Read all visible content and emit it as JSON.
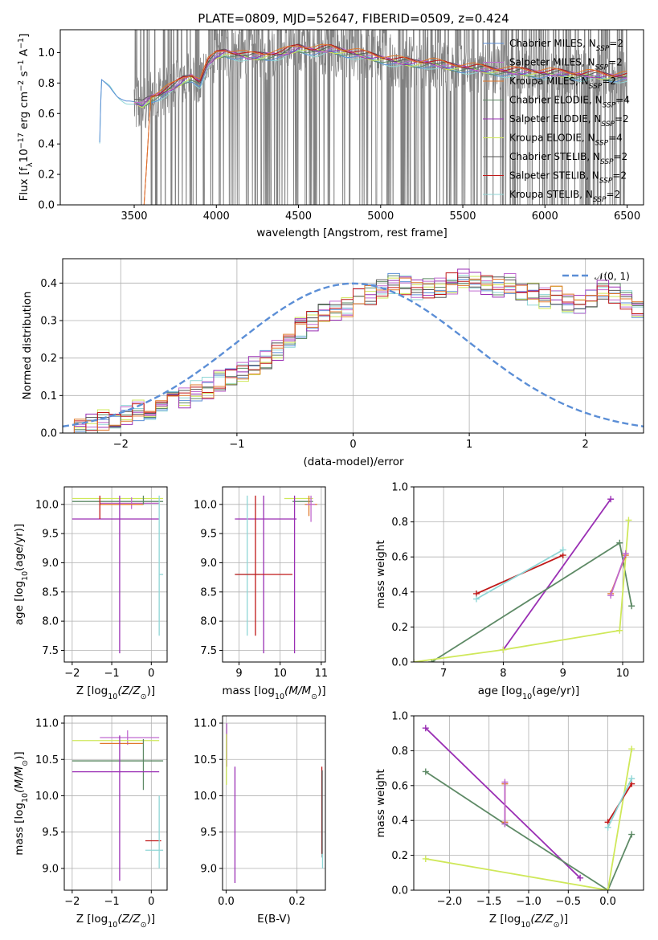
{
  "figure_title": "PLATE=0809, MJD=52647, FIBERID=0509, z=0.424",
  "colors": {
    "chabrier_miles": "#5b8ed6",
    "salpeter_miles": "#c06ad0",
    "kroupa_miles": "#e0782c",
    "chabrier_elodie": "#5e8a66",
    "salpeter_elodie": "#9a2fb4",
    "kroupa_elodie": "#cfe85a",
    "chabrier_stelib": "#555555",
    "salpeter_stelib": "#c01818",
    "kroupa_stelib": "#8fd6d6",
    "data": "#808080",
    "gauss": "#5b8ed6"
  },
  "legend_spectrum": [
    {
      "key": "chabrier_miles",
      "label": "Chabrier MILES, N",
      "sub": "SSP",
      "val": "=2"
    },
    {
      "key": "salpeter_miles",
      "label": "Salpeter MILES, N",
      "sub": "SSP",
      "val": "=2"
    },
    {
      "key": "kroupa_miles",
      "label": "Kroupa MILES, N",
      "sub": "SSP",
      "val": "=2"
    },
    {
      "key": "chabrier_elodie",
      "label": "Chabrier ELODIE, N",
      "sub": "SSP",
      "val": "=4"
    },
    {
      "key": "salpeter_elodie",
      "label": "Salpeter ELODIE, N",
      "sub": "SSP",
      "val": "=2"
    },
    {
      "key": "kroupa_elodie",
      "label": "Kroupa ELODIE, N",
      "sub": "SSP",
      "val": "=4"
    },
    {
      "key": "chabrier_stelib",
      "label": "Chabrier STELIB, N",
      "sub": "SSP",
      "val": "=2"
    },
    {
      "key": "salpeter_stelib",
      "label": "Salpeter STELIB, N",
      "sub": "SSP",
      "val": "=2"
    },
    {
      "key": "kroupa_stelib",
      "label": "Kroupa STELIB, N",
      "sub": "SSP",
      "val": "=2"
    }
  ],
  "chart_data": [
    {
      "id": "spectrum",
      "type": "line",
      "title": "PLATE=0809, MJD=52647, FIBERID=0509, z=0.424",
      "xlabel": "wavelength [Angstrom, rest frame]",
      "ylabel_parts": [
        "Flux [f",
        "λ",
        "10",
        "−17",
        " erg cm",
        "−2",
        " s",
        "−1",
        " A",
        "−1",
        "]"
      ],
      "xlim": [
        3050,
        6600
      ],
      "ylim": [
        0,
        1.15
      ],
      "xticks": [
        3500,
        4000,
        4500,
        5000,
        5500,
        6000,
        6500
      ],
      "yticks": [
        0.0,
        0.2,
        0.4,
        0.6,
        0.8,
        1.0
      ],
      "model_knots": {
        "x": [
          3280,
          3300,
          3350,
          3400,
          3450,
          3500,
          3550,
          3600,
          3650,
          3700,
          3750,
          3800,
          3850,
          3900,
          3950,
          4000,
          4050,
          4100,
          4200,
          4300,
          4400,
          4500,
          4600,
          4700,
          4800,
          4900,
          5000,
          5100,
          5200,
          5300,
          5400,
          5500,
          5600,
          5700,
          5800,
          5900,
          6000,
          6100,
          6200,
          6300,
          6400,
          6500
        ],
        "y": [
          0.0,
          0.83,
          0.8,
          0.74,
          0.7,
          0.68,
          0.66,
          0.7,
          0.72,
          0.75,
          0.78,
          0.82,
          0.84,
          0.8,
          0.93,
          0.98,
          1.0,
          0.99,
          0.97,
          0.98,
          0.99,
          1.03,
          1.01,
          1.02,
          1.0,
          0.98,
          0.96,
          0.94,
          0.93,
          0.93,
          0.91,
          0.9,
          0.89,
          0.88,
          0.87,
          0.87,
          0.86,
          0.86,
          0.85,
          0.85,
          0.84,
          0.84
        ]
      },
      "data_range": [
        3500,
        6500
      ],
      "legend_position": "upper right"
    },
    {
      "id": "residuals",
      "type": "step",
      "xlabel": "(data-model)/error",
      "ylabel": "Normed distribution",
      "xlim": [
        -2.5,
        2.5
      ],
      "ylim": [
        0,
        0.465
      ],
      "xticks": [
        -2,
        -1,
        0,
        1,
        2
      ],
      "yticks": [
        0.0,
        0.1,
        0.2,
        0.3,
        0.4
      ],
      "bin_width": 0.1,
      "bin_start": -2.5,
      "base_hist": [
        0.018,
        0.022,
        0.028,
        0.034,
        0.042,
        0.052,
        0.058,
        0.05,
        0.07,
        0.082,
        0.092,
        0.11,
        0.12,
        0.14,
        0.155,
        0.165,
        0.18,
        0.2,
        0.22,
        0.25,
        0.28,
        0.3,
        0.32,
        0.33,
        0.34,
        0.36,
        0.37,
        0.38,
        0.4,
        0.39,
        0.38,
        0.385,
        0.39,
        0.4,
        0.41,
        0.4,
        0.39,
        0.39,
        0.4,
        0.38,
        0.37,
        0.36,
        0.37,
        0.35,
        0.34,
        0.36,
        0.38,
        0.37,
        0.35,
        0.33,
        0.38,
        0.36,
        0.35,
        0.34,
        0.32,
        0.3,
        0.29,
        0.28,
        0.27,
        0.25,
        0.23,
        0.21,
        0.19,
        0.17,
        0.15,
        0.14,
        0.13,
        0.12,
        0.11,
        0.1,
        0.09,
        0.08,
        0.075,
        0.07,
        0.06,
        0.055,
        0.05,
        0.045,
        0.04,
        0.038,
        0.035,
        0.032,
        0.03,
        0.028,
        0.026,
        0.024,
        0.022,
        0.02,
        0.019,
        0.018,
        0.017,
        0.016,
        0.015,
        0.014,
        0.013,
        0.012,
        0.011,
        0.01,
        0.01,
        0.01
      ],
      "gaussian_label": "𝒩(0, 1)",
      "legend_position": "upper right"
    },
    {
      "id": "age_vs_Z",
      "type": "errorbar",
      "xlabel_parts": [
        "Z [log",
        "10",
        "(Z/Z",
        "⊙",
        ")]"
      ],
      "ylabel_parts": [
        "age  [log",
        "10",
        "(age/yr)]"
      ],
      "xlim": [
        -2.2,
        0.4
      ],
      "ylim": [
        7.3,
        10.3
      ],
      "xticks": [
        -2,
        -1,
        0
      ],
      "yticks": [
        7.5,
        8.0,
        8.5,
        9.0,
        9.5,
        10.0
      ],
      "bars": [
        {
          "c": "kroupa_elodie",
          "x": -0.9,
          "xerr": [
            1.1,
            1.2
          ],
          "y": 10.1,
          "yerr": [
            0.0,
            0.0
          ]
        },
        {
          "c": "chabrier_elodie",
          "x": -0.9,
          "xerr": [
            1.1,
            1.2
          ],
          "y": 10.05,
          "yerr": [
            0.0,
            0.0
          ]
        },
        {
          "c": "salpeter_miles",
          "x": -0.5,
          "xerr": [
            0.8,
            0.7
          ],
          "y": 10.02,
          "yerr": [
            0.1,
            0.1
          ]
        },
        {
          "c": "kroupa_miles",
          "x": -0.7,
          "xerr": [
            0.6,
            0.5
          ],
          "y": 10.0,
          "yerr": [
            0.0,
            0.0
          ]
        },
        {
          "c": "salpeter_elodie",
          "x": -0.8,
          "xerr": [
            1.2,
            1.0
          ],
          "y": 9.75,
          "yerr": [
            2.3,
            0.4
          ]
        },
        {
          "c": "kroupa_stelib",
          "x": 0.2,
          "xerr": [
            0.0,
            0.1
          ],
          "y": 8.8,
          "yerr": [
            1.05,
            1.35
          ]
        },
        {
          "c": "chabrier_elodie",
          "x": -0.2,
          "xerr": [
            0.0,
            0.0
          ],
          "y": 10.0,
          "yerr": [
            0.0,
            0.15
          ]
        },
        {
          "c": "salpeter_stelib",
          "x": -1.3,
          "xerr": [
            0.0,
            0.0
          ],
          "y": 10.0,
          "yerr": [
            0.25,
            0.15
          ]
        }
      ]
    },
    {
      "id": "age_vs_mass",
      "type": "errorbar",
      "xlabel_parts": [
        "mass [log",
        "10",
        "(M/M",
        "⊙",
        ")]"
      ],
      "xlim": [
        8.6,
        11.1
      ],
      "ylim": [
        7.3,
        10.3
      ],
      "xticks": [
        9,
        10,
        11
      ],
      "yticks": [
        7.5,
        8.0,
        8.5,
        9.0,
        9.5,
        10.0
      ],
      "bars": [
        {
          "c": "kroupa_elodie",
          "x": 10.5,
          "xerr": [
            0.4,
            0.3
          ],
          "y": 10.1,
          "yerr": [
            0.0,
            0.0
          ]
        },
        {
          "c": "chabrier_elodie",
          "x": 10.5,
          "xerr": [
            0.2,
            0.3
          ],
          "y": 10.05,
          "yerr": [
            0.0,
            0.0
          ]
        },
        {
          "c": "kroupa_miles",
          "x": 10.7,
          "xerr": [
            0.1,
            0.2
          ],
          "y": 10.0,
          "yerr": [
            0.2,
            0.15
          ]
        },
        {
          "c": "salpeter_miles",
          "x": 10.75,
          "xerr": [
            0.1,
            0.1
          ],
          "y": 10.0,
          "yerr": [
            0.3,
            0.15
          ]
        },
        {
          "c": "salpeter_elodie",
          "x": 9.6,
          "xerr": [
            0.7,
            0.8
          ],
          "y": 9.75,
          "yerr": [
            2.3,
            0.4
          ]
        },
        {
          "c": "kroupa_stelib",
          "x": 9.2,
          "xerr": [
            0.3,
            0.3
          ],
          "y": 8.8,
          "yerr": [
            1.05,
            1.35
          ]
        },
        {
          "c": "salpeter_stelib",
          "x": 9.4,
          "xerr": [
            0.5,
            0.9
          ],
          "y": 8.8,
          "yerr": [
            1.05,
            1.35
          ]
        },
        {
          "c": "salpeter_elodie",
          "x": 10.35,
          "xerr": [
            0.0,
            0.0
          ],
          "y": 9.75,
          "yerr": [
            2.3,
            0.4
          ]
        }
      ]
    },
    {
      "id": "weight_vs_age",
      "type": "line",
      "xlabel_parts": [
        "age  [log",
        "10",
        "(age/yr)]"
      ],
      "ylabel": "mass weight",
      "xlim": [
        6.5,
        10.35
      ],
      "ylim": [
        0,
        1.0
      ],
      "xticks": [
        7,
        8,
        9,
        10
      ],
      "yticks": [
        0.0,
        0.2,
        0.4,
        0.6,
        0.8,
        1.0
      ],
      "series": [
        {
          "c": "salpeter_elodie",
          "x": [
            8.0,
            9.8
          ],
          "y": [
            0.07,
            0.93
          ]
        },
        {
          "c": "chabrier_elodie",
          "x": [
            6.8,
            9.95,
            10.15
          ],
          "y": [
            0.0,
            0.68,
            0.32
          ]
        },
        {
          "c": "kroupa_elodie",
          "x": [
            6.5,
            8.0,
            9.95,
            10.1
          ],
          "y": [
            0.0,
            0.07,
            0.18,
            0.81
          ]
        },
        {
          "c": "salpeter_stelib",
          "x": [
            7.55,
            9.0
          ],
          "y": [
            0.39,
            0.61
          ]
        },
        {
          "c": "kroupa_stelib",
          "x": [
            7.55,
            9.0
          ],
          "y": [
            0.36,
            0.64
          ]
        },
        {
          "c": "kroupa_miles",
          "x": [
            9.8,
            10.05
          ],
          "y": [
            0.39,
            0.61
          ]
        },
        {
          "c": "salpeter_miles",
          "x": [
            9.8,
            10.05
          ],
          "y": [
            0.38,
            0.62
          ]
        }
      ]
    },
    {
      "id": "mass_vs_Z",
      "type": "errorbar",
      "xlabel_parts": [
        "Z [log",
        "10",
        "(Z/Z",
        "⊙",
        ")]"
      ],
      "ylabel_parts": [
        "mass [log",
        "10",
        "(M/M",
        "⊙",
        ")]"
      ],
      "xlim": [
        -2.2,
        0.4
      ],
      "ylim": [
        8.7,
        11.1
      ],
      "xticks": [
        -2,
        -1,
        0
      ],
      "yticks": [
        9.0,
        9.5,
        10.0,
        10.5,
        11.0
      ],
      "bars": [
        {
          "c": "salpeter_miles",
          "x": -0.6,
          "xerr": [
            0.7,
            0.8
          ],
          "y": 10.8,
          "yerr": [
            0.1,
            0.1
          ]
        },
        {
          "c": "kroupa_elodie",
          "x": -0.9,
          "xerr": [
            1.1,
            1.1
          ],
          "y": 10.76,
          "yerr": [
            0.0,
            0.0
          ]
        },
        {
          "c": "kroupa_miles",
          "x": -0.7,
          "xerr": [
            0.6,
            0.5
          ],
          "y": 10.72,
          "yerr": [
            0.0,
            0.0
          ]
        },
        {
          "c": "chabrier_elodie",
          "x": -0.9,
          "xerr": [
            1.1,
            1.2
          ],
          "y": 10.48,
          "yerr": [
            0.0,
            0.0
          ]
        },
        {
          "c": "chabrier_elodie",
          "x": -0.2,
          "xerr": [
            0.0,
            0.0
          ],
          "y": 10.48,
          "yerr": [
            0.4,
            0.3
          ]
        },
        {
          "c": "salpeter_elodie",
          "x": -0.8,
          "xerr": [
            1.2,
            1.0
          ],
          "y": 10.33,
          "yerr": [
            1.5,
            0.5
          ]
        },
        {
          "c": "salpeter_stelib",
          "x": 0.05,
          "xerr": [
            0.2,
            0.2
          ],
          "y": 9.38,
          "yerr": [
            0.0,
            0.0
          ]
        },
        {
          "c": "kroupa_stelib",
          "x": 0.05,
          "xerr": [
            0.2,
            0.25
          ],
          "y": 9.25,
          "yerr": [
            0.0,
            0.0
          ]
        },
        {
          "c": "kroupa_stelib",
          "x": 0.2,
          "xerr": [
            0.0,
            0.0
          ],
          "y": 9.6,
          "yerr": [
            0.6,
            0.4
          ]
        }
      ]
    },
    {
      "id": "mass_vs_ebv",
      "type": "errorbar",
      "xlabel": "E(B-V)",
      "xlim": [
        -0.01,
        0.28
      ],
      "ylim": [
        8.7,
        11.1
      ],
      "xticks": [
        0.0,
        0.2
      ],
      "yticks": [
        9.0,
        9.5,
        10.0,
        10.5,
        11.0
      ],
      "bars": [
        {
          "c": "salpeter_miles",
          "x": 0.002,
          "xerr": [
            0.0,
            0.0
          ],
          "y": 10.7,
          "yerr": [
            0.3,
            0.3
          ]
        },
        {
          "c": "kroupa_elodie",
          "x": 0.001,
          "xerr": [
            0.0,
            0.0
          ],
          "y": 10.5,
          "yerr": [
            0.35,
            0.35
          ]
        },
        {
          "c": "salpeter_elodie",
          "x": 0.025,
          "xerr": [
            0.0,
            0.0
          ],
          "y": 9.6,
          "yerr": [
            0.8,
            0.8
          ]
        },
        {
          "c": "salpeter_stelib",
          "x": 0.27,
          "xerr": [
            0.0,
            0.0
          ],
          "y": 9.8,
          "yerr": [
            0.6,
            0.6
          ]
        },
        {
          "c": "chabrier_stelib",
          "x": 0.271,
          "xerr": [
            0.0,
            0.0
          ],
          "y": 9.75,
          "yerr": [
            0.6,
            0.6
          ]
        },
        {
          "c": "kroupa_stelib",
          "x": 0.272,
          "xerr": [
            0.0,
            0.0
          ],
          "y": 9.1,
          "yerr": [
            0.1,
            0.1
          ]
        }
      ]
    },
    {
      "id": "weight_vs_Z",
      "type": "line",
      "xlabel_parts": [
        "Z [log",
        "10",
        "(Z/Z",
        "⊙",
        ")]"
      ],
      "ylabel": "mass weight",
      "xlim": [
        -2.45,
        0.45
      ],
      "ylim": [
        0,
        1.0
      ],
      "xticks": [
        -2.0,
        -1.5,
        -1.0,
        -0.5,
        0.0
      ],
      "yticks": [
        0.0,
        0.2,
        0.4,
        0.6,
        0.8,
        1.0
      ],
      "series": [
        {
          "c": "salpeter_elodie",
          "x": [
            -2.3,
            -0.35
          ],
          "y": [
            0.93,
            0.07
          ]
        },
        {
          "c": "chabrier_elodie",
          "x": [
            -2.3,
            -1.3,
            0.0,
            0.3
          ],
          "y": [
            0.68,
            0.38,
            0.0,
            0.32
          ]
        },
        {
          "c": "kroupa_elodie",
          "x": [
            -2.3,
            0.0,
            0.3
          ],
          "y": [
            0.18,
            0.0,
            0.81
          ]
        },
        {
          "c": "kroupa_miles",
          "x": [
            -1.3,
            -1.3
          ],
          "y": [
            0.39,
            0.61
          ]
        },
        {
          "c": "salpeter_miles",
          "x": [
            -1.3,
            -1.3
          ],
          "y": [
            0.38,
            0.62
          ]
        },
        {
          "c": "salpeter_stelib",
          "x": [
            0.0,
            0.3
          ],
          "y": [
            0.39,
            0.61
          ]
        },
        {
          "c": "kroupa_stelib",
          "x": [
            0.0,
            0.3
          ],
          "y": [
            0.36,
            0.64
          ]
        }
      ]
    }
  ]
}
